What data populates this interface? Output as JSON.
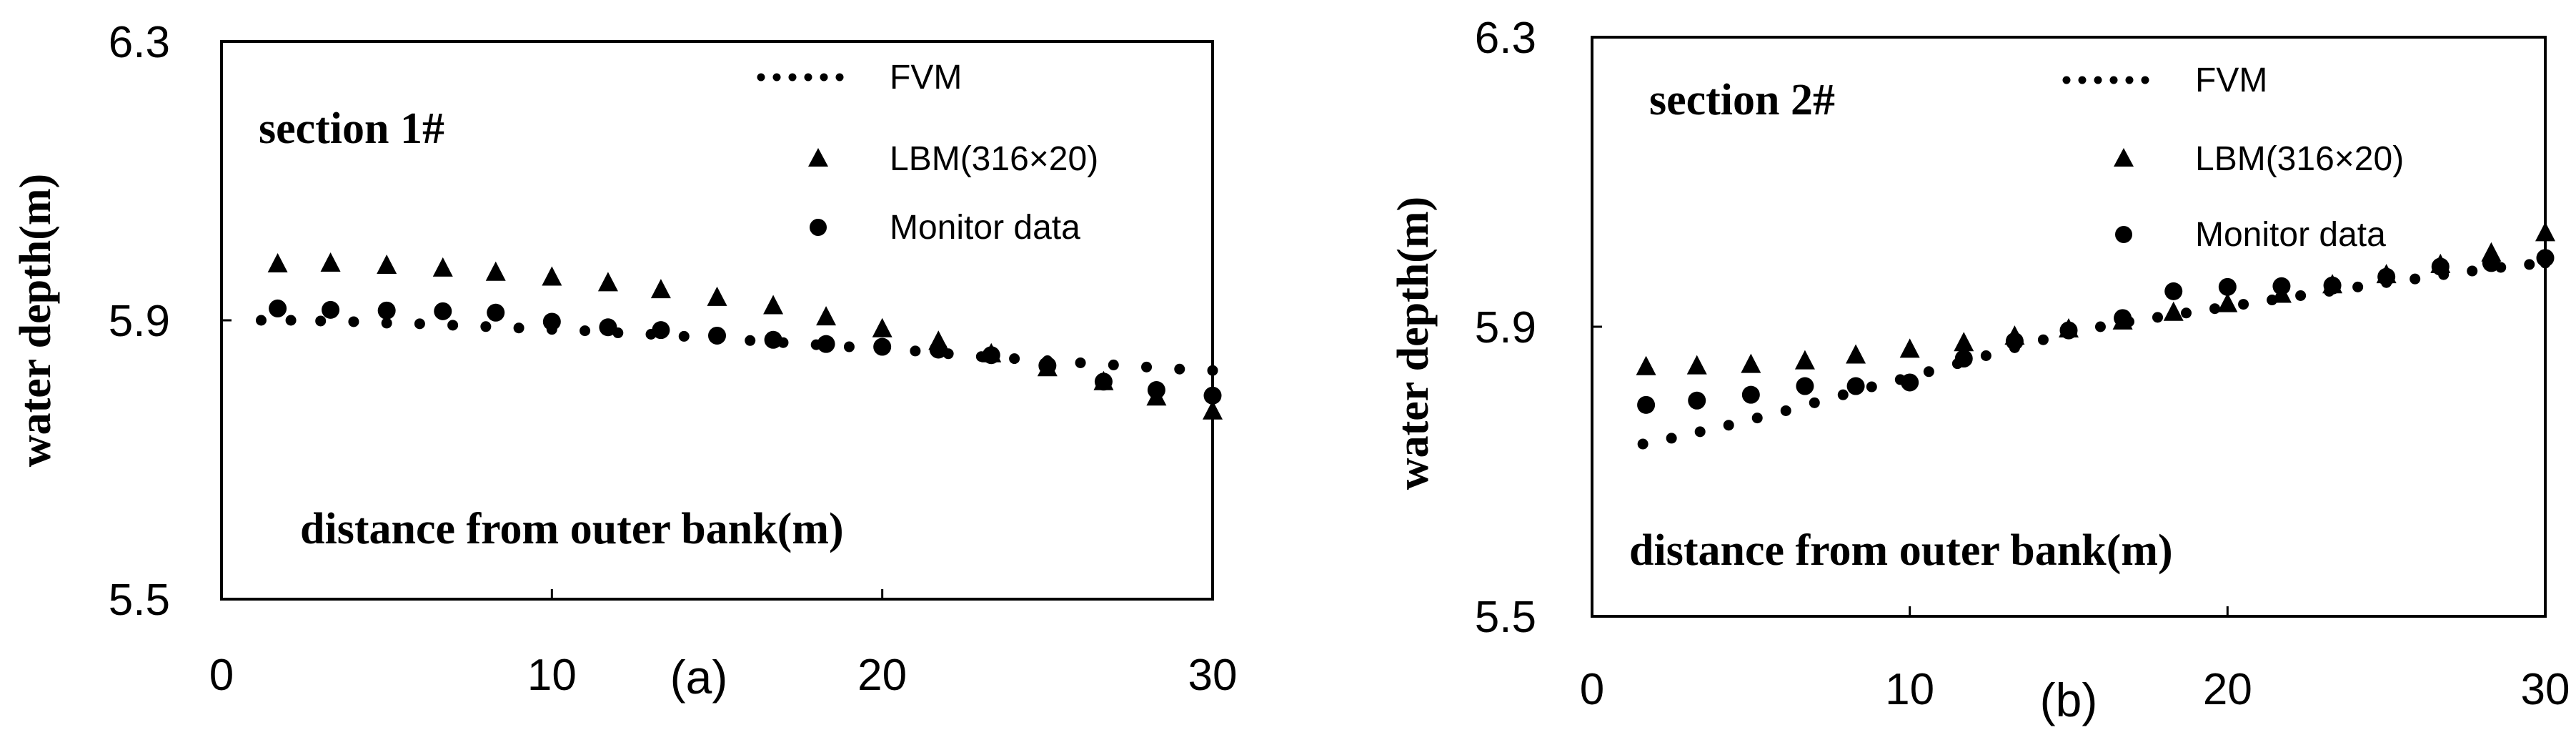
{
  "chart_data": [
    {
      "type": "scatter",
      "panel_label": "(a)",
      "section": "section 1#",
      "xlabel": "distance from outer bank(m)",
      "ylabel": "water depth(m)",
      "xlim": [
        0,
        30
      ],
      "ylim": [
        5.5,
        6.3
      ],
      "x_ticks": [
        "0",
        "10",
        "20",
        "30"
      ],
      "y_ticks": [
        "5.5",
        "5.9",
        "6.3"
      ],
      "legend": [
        "FVM",
        "LBM(316×20)",
        "Monitor data"
      ],
      "series": [
        {
          "name": "FVM",
          "marker": "dotted-line",
          "x": [
            1.2,
            2.1,
            3.0,
            4.0,
            5.0,
            6.0,
            7.0,
            8.0,
            9.0,
            10.0,
            11.0,
            12.0,
            13.0,
            14.0,
            15.0,
            16.0,
            17.0,
            18.0,
            19.0,
            20.0,
            21.0,
            22.0,
            23.0,
            24.0,
            25.0,
            26.0,
            27.0,
            28.0,
            29.0,
            30.0
          ],
          "y": [
            5.9,
            5.9,
            5.899,
            5.898,
            5.896,
            5.895,
            5.893,
            5.891,
            5.889,
            5.887,
            5.885,
            5.882,
            5.88,
            5.877,
            5.874,
            5.871,
            5.868,
            5.865,
            5.862,
            5.859,
            5.856,
            5.852,
            5.848,
            5.845,
            5.842,
            5.839,
            5.836,
            5.833,
            5.83,
            5.828
          ]
        },
        {
          "name": "LBM(316×20)",
          "marker": "triangle",
          "x": [
            1.7,
            3.3,
            5.0,
            6.7,
            8.3,
            10.0,
            11.7,
            13.3,
            15.0,
            16.7,
            18.3,
            20.0,
            21.7,
            23.3,
            25.0,
            26.7,
            28.3,
            30.0
          ],
          "y": [
            5.981,
            5.982,
            5.979,
            5.975,
            5.969,
            5.962,
            5.954,
            5.944,
            5.933,
            5.921,
            5.905,
            5.888,
            5.87,
            5.852,
            5.832,
            5.812,
            5.79,
            5.77
          ]
        },
        {
          "name": "Monitor data",
          "marker": "circle",
          "x": [
            1.7,
            3.3,
            5.0,
            6.7,
            8.3,
            10.0,
            11.7,
            13.3,
            15.0,
            16.7,
            18.3,
            20.0,
            21.7,
            23.3,
            25.0,
            26.7,
            28.3,
            30.0
          ],
          "y": [
            5.917,
            5.915,
            5.914,
            5.913,
            5.911,
            5.898,
            5.89,
            5.886,
            5.878,
            5.872,
            5.866,
            5.862,
            5.858,
            5.85,
            5.835,
            5.812,
            5.8,
            5.792
          ]
        }
      ]
    },
    {
      "type": "scatter",
      "panel_label": "(b)",
      "section": "section 2#",
      "xlabel": "distance from outer bank(m)",
      "ylabel": "water depth(m)",
      "xlim": [
        0,
        30
      ],
      "ylim": [
        5.5,
        6.3
      ],
      "x_ticks": [
        "0",
        "10",
        "20",
        "30"
      ],
      "y_ticks": [
        "5.5",
        "5.9",
        "6.3"
      ],
      "legend": [
        "FVM",
        "LBM(316×20)",
        "Monitor data"
      ],
      "series": [
        {
          "name": "FVM",
          "marker": "dotted-line",
          "x": [
            1.6,
            2.5,
            3.4,
            4.3,
            5.2,
            6.1,
            7.0,
            7.9,
            8.8,
            9.7,
            10.6,
            11.5,
            12.4,
            13.3,
            14.2,
            15.1,
            16.0,
            16.9,
            17.8,
            18.7,
            19.6,
            20.5,
            21.4,
            22.3,
            23.2,
            24.1,
            25.0,
            25.9,
            26.8,
            27.7,
            28.6,
            29.5,
            30.0
          ],
          "y": [
            5.738,
            5.746,
            5.755,
            5.764,
            5.774,
            5.784,
            5.795,
            5.806,
            5.817,
            5.827,
            5.838,
            5.849,
            5.86,
            5.871,
            5.882,
            5.892,
            5.9,
            5.907,
            5.913,
            5.919,
            5.925,
            5.931,
            5.937,
            5.943,
            5.949,
            5.955,
            5.961,
            5.966,
            5.972,
            5.977,
            5.982,
            5.986,
            5.988
          ]
        },
        {
          "name": "LBM(316×20)",
          "marker": "triangle",
          "x": [
            1.7,
            3.3,
            5.0,
            6.7,
            8.3,
            10.0,
            11.7,
            13.3,
            15.0,
            16.7,
            18.3,
            20.0,
            21.7,
            23.3,
            25.0,
            26.7,
            28.3,
            30.0
          ],
          "y": [
            5.845,
            5.846,
            5.848,
            5.853,
            5.861,
            5.869,
            5.878,
            5.887,
            5.897,
            5.908,
            5.92,
            5.932,
            5.945,
            5.958,
            5.972,
            5.986,
            6.002,
            6.03
          ]
        },
        {
          "name": "Monitor data",
          "marker": "circle",
          "x": [
            1.7,
            3.3,
            5.0,
            6.7,
            8.3,
            10.0,
            11.7,
            13.3,
            15.0,
            16.7,
            18.3,
            20.0,
            21.7,
            23.3,
            25.0,
            26.7,
            28.3,
            30.0
          ],
          "y": [
            5.792,
            5.798,
            5.806,
            5.818,
            5.818,
            5.823,
            5.856,
            5.88,
            5.895,
            5.912,
            5.949,
            5.955,
            5.956,
            5.957,
            5.969,
            5.983,
            5.988,
            5.995
          ]
        }
      ]
    }
  ]
}
